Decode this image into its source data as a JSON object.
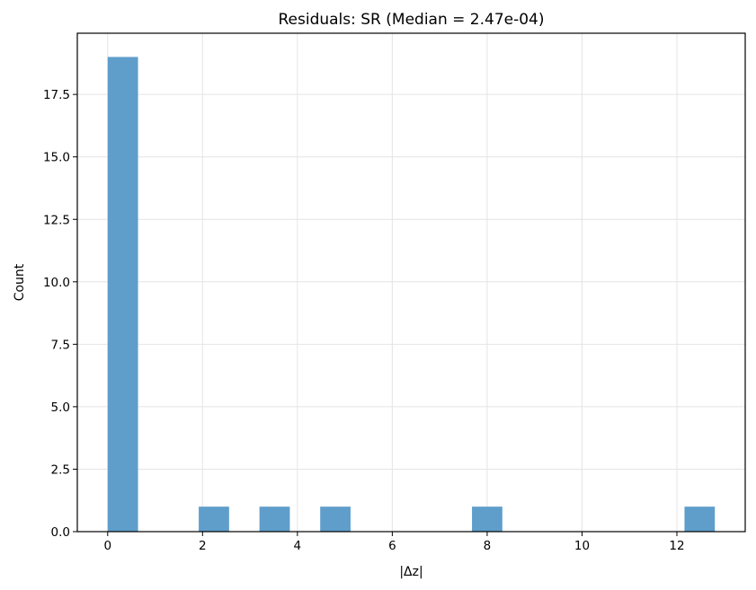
{
  "chart_data": {
    "type": "bar",
    "title": "Residuals: SR (Median = 2.47e-04)",
    "xlabel": "|Δz|",
    "ylabel": "Count",
    "xlim": [
      -0.64,
      13.44
    ],
    "ylim": [
      0,
      19.95
    ],
    "grid": true,
    "bar_color": "#5f9ecb",
    "bins": [
      {
        "x0": 0.0,
        "x1": 0.64,
        "count": 19
      },
      {
        "x0": 1.92,
        "x1": 2.56,
        "count": 1
      },
      {
        "x0": 3.2,
        "x1": 3.84,
        "count": 1
      },
      {
        "x0": 4.48,
        "x1": 5.12,
        "count": 1
      },
      {
        "x0": 7.68,
        "x1": 8.32,
        "count": 1
      },
      {
        "x0": 12.16,
        "x1": 12.8,
        "count": 1
      }
    ],
    "x_ticks": [
      {
        "value": 0,
        "label": "0"
      },
      {
        "value": 2,
        "label": "2"
      },
      {
        "value": 4,
        "label": "4"
      },
      {
        "value": 6,
        "label": "6"
      },
      {
        "value": 8,
        "label": "8"
      },
      {
        "value": 10,
        "label": "10"
      },
      {
        "value": 12,
        "label": "12"
      }
    ],
    "y_ticks": [
      {
        "value": 0,
        "label": "0.0"
      },
      {
        "value": 2.5,
        "label": "2.5"
      },
      {
        "value": 5,
        "label": "5.0"
      },
      {
        "value": 7.5,
        "label": "7.5"
      },
      {
        "value": 10,
        "label": "10.0"
      },
      {
        "value": 12.5,
        "label": "12.5"
      },
      {
        "value": 15,
        "label": "15.0"
      },
      {
        "value": 17.5,
        "label": "17.5"
      }
    ]
  }
}
